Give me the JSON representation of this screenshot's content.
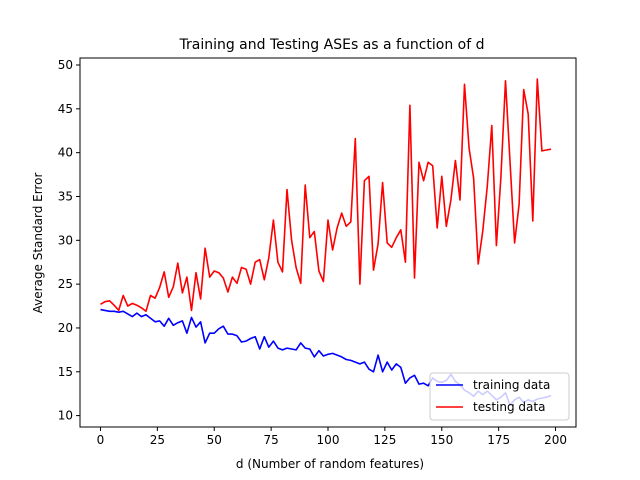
{
  "chart_data": {
    "type": "line",
    "title": "Training and Testing ASEs as a function of d",
    "xlabel": "d (Number of random features)",
    "ylabel": "Average Standard Error",
    "xlim": [
      -9,
      209
    ],
    "ylim": [
      8.7,
      50.8
    ],
    "xticks": [
      0,
      25,
      50,
      75,
      100,
      125,
      150,
      175,
      200
    ],
    "yticks": [
      10,
      15,
      20,
      25,
      30,
      35,
      40,
      45,
      50
    ],
    "grid": false,
    "legend_position": "lower-right",
    "series": [
      {
        "name": "training data",
        "color": "#0000ff",
        "x": [
          0,
          2,
          4,
          6,
          8,
          10,
          12,
          14,
          16,
          18,
          20,
          22,
          24,
          26,
          28,
          30,
          32,
          34,
          36,
          38,
          40,
          42,
          44,
          46,
          48,
          50,
          52,
          54,
          56,
          58,
          60,
          62,
          64,
          66,
          68,
          70,
          72,
          74,
          76,
          78,
          80,
          82,
          84,
          86,
          88,
          90,
          92,
          94,
          96,
          98,
          100,
          102,
          104,
          106,
          108,
          110,
          112,
          114,
          116,
          118,
          120,
          122,
          124,
          126,
          128,
          130,
          132,
          134,
          136,
          138,
          140,
          142,
          144,
          146,
          148,
          150,
          152,
          154,
          156,
          158,
          160,
          162,
          164,
          166,
          168,
          170,
          172,
          174,
          176,
          178,
          180,
          182,
          184,
          186,
          188,
          190,
          192,
          194,
          196,
          198
        ],
        "y": [
          22.1,
          22.0,
          21.9,
          21.9,
          21.8,
          21.9,
          21.6,
          21.3,
          21.7,
          21.3,
          21.5,
          21.1,
          20.7,
          20.8,
          20.2,
          21.1,
          20.3,
          20.6,
          20.8,
          19.4,
          21.2,
          20.1,
          20.7,
          18.3,
          19.4,
          19.4,
          19.9,
          20.2,
          19.3,
          19.3,
          19.1,
          18.4,
          18.5,
          18.8,
          19.0,
          17.6,
          19.0,
          17.8,
          18.5,
          17.7,
          17.5,
          17.7,
          17.6,
          17.5,
          18.3,
          17.7,
          17.6,
          16.7,
          17.4,
          16.8,
          17.0,
          17.1,
          16.9,
          16.7,
          16.4,
          16.3,
          16.1,
          15.9,
          16.1,
          15.3,
          15.0,
          16.9,
          15.0,
          16.1,
          15.2,
          15.9,
          15.5,
          13.7,
          14.3,
          14.6,
          13.6,
          13.7,
          13.4,
          14.3,
          13.9,
          13.8,
          14.0,
          14.7,
          13.9,
          13.5,
          12.9,
          12.6,
          12.2,
          12.8,
          12.4,
          12.8,
          12.3,
          11.8,
          12.1,
          12.6,
          11.2,
          11.8,
          12.1,
          11.5,
          11.8,
          11.6,
          11.9,
          12.0,
          12.1,
          12.3
        ]
      },
      {
        "name": "testing data",
        "color": "#ff0000",
        "x": [
          0,
          2,
          4,
          6,
          8,
          10,
          12,
          14,
          16,
          18,
          20,
          22,
          24,
          26,
          28,
          30,
          32,
          34,
          36,
          38,
          40,
          42,
          44,
          46,
          48,
          50,
          52,
          54,
          56,
          58,
          60,
          62,
          64,
          66,
          68,
          70,
          72,
          74,
          76,
          78,
          80,
          82,
          84,
          86,
          88,
          90,
          92,
          94,
          96,
          98,
          100,
          102,
          104,
          106,
          108,
          110,
          112,
          114,
          116,
          118,
          120,
          122,
          124,
          126,
          128,
          130,
          132,
          134,
          136,
          138,
          140,
          142,
          144,
          146,
          148,
          150,
          152,
          154,
          156,
          158,
          160,
          162,
          164,
          166,
          168,
          170,
          172,
          174,
          176,
          178,
          180,
          182,
          184,
          186,
          188,
          190,
          192,
          194,
          196,
          198
        ],
        "y": [
          22.7,
          23.0,
          23.1,
          22.6,
          22.0,
          23.7,
          22.5,
          22.8,
          22.6,
          22.3,
          21.9,
          23.7,
          23.4,
          24.6,
          26.4,
          23.5,
          24.7,
          27.4,
          24.0,
          25.8,
          22.0,
          26.3,
          23.3,
          29.1,
          25.8,
          26.5,
          26.3,
          25.7,
          24.1,
          25.8,
          25.1,
          26.9,
          26.7,
          25.0,
          27.5,
          27.8,
          25.5,
          28.0,
          32.3,
          27.5,
          26.4,
          35.8,
          30.0,
          26.9,
          25.1,
          36.3,
          30.3,
          31.0,
          26.5,
          25.3,
          32.3,
          28.9,
          31.4,
          33.1,
          31.6,
          32.1,
          41.6,
          25.0,
          36.8,
          37.3,
          26.6,
          29.6,
          36.6,
          29.7,
          29.2,
          30.3,
          31.2,
          27.5,
          45.4,
          25.7,
          38.9,
          36.8,
          38.9,
          38.5,
          31.4,
          37.3,
          31.6,
          34.6,
          39.1,
          34.6,
          47.8,
          40.5,
          37.1,
          27.3,
          31.0,
          36.2,
          43.1,
          29.4,
          37.2,
          48.2,
          39.0,
          29.7,
          34.1,
          47.2,
          44.4,
          32.2,
          48.4,
          40.2,
          40.3,
          40.4
        ]
      }
    ]
  }
}
